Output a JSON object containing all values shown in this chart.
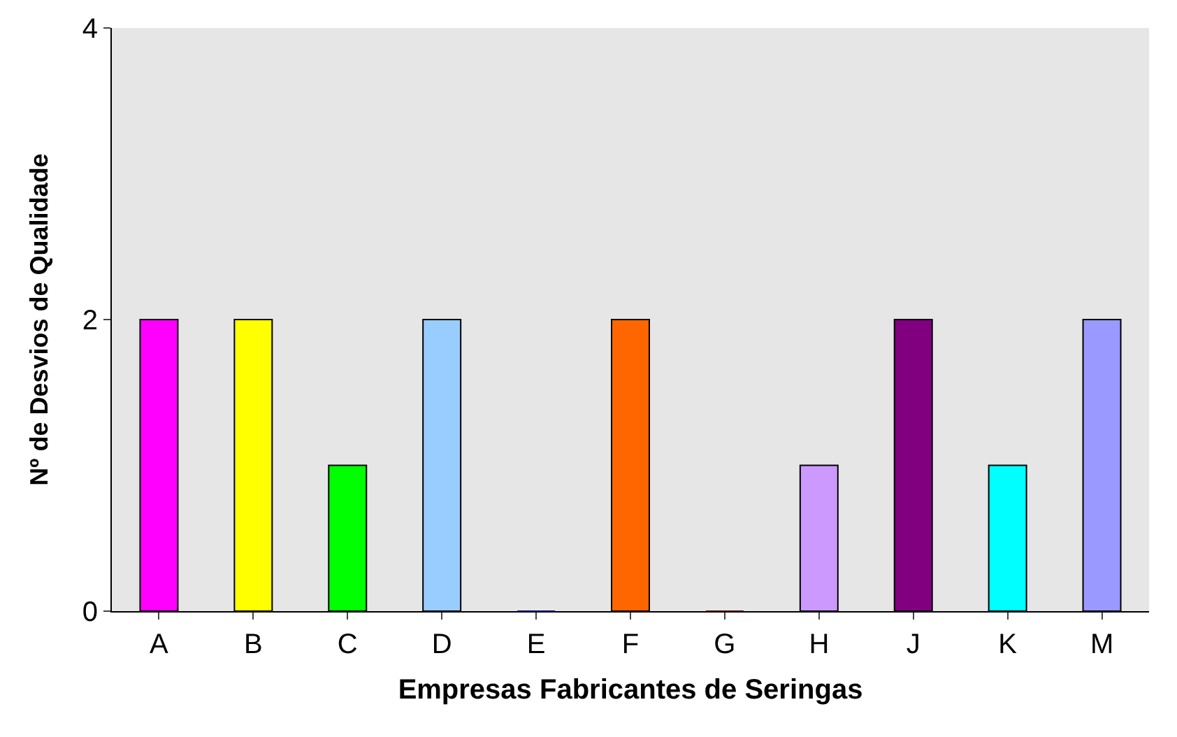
{
  "chart_data": {
    "type": "bar",
    "xlabel": "Empresas Fabricantes de Seringas",
    "ylabel": "Nº de Desvios de Qualidade",
    "categories": [
      "A",
      "B",
      "C",
      "D",
      "E",
      "F",
      "G",
      "H",
      "J",
      "K",
      "M"
    ],
    "values": [
      2,
      2,
      1,
      2,
      0,
      2,
      0,
      1,
      2,
      1,
      2
    ],
    "colors": [
      "#ff00ff",
      "#ffff00",
      "#00ff00",
      "#99ccff",
      "#0000cc",
      "#ff6600",
      "#800000",
      "#cc99ff",
      "#800080",
      "#00ffff",
      "#9999ff"
    ],
    "ylim": [
      0,
      4
    ],
    "yticks": [
      0,
      2,
      4
    ],
    "grid": false
  }
}
